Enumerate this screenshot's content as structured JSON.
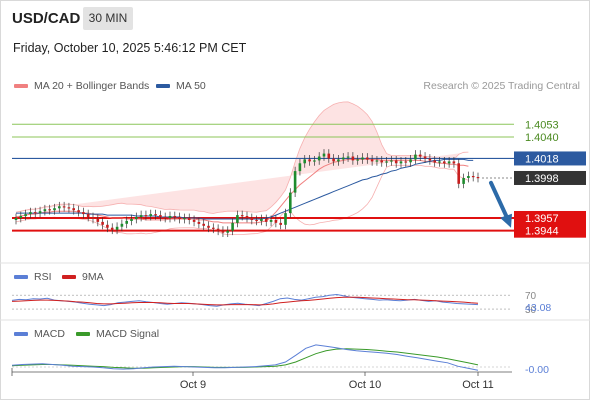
{
  "header": {
    "symbol": "USD/CAD",
    "timeframe": "30 MIN",
    "datetime": "Friday, October 10, 2025 5:46:12 PM CET",
    "copyright": "Research © 2025 Trading Central"
  },
  "legends": {
    "main": [
      {
        "label": "MA 20 + Bollinger Bands",
        "color": "#f08080"
      },
      {
        "label": "MA 50",
        "color": "#2c5aa0"
      }
    ],
    "rsi": [
      {
        "label": "RSI",
        "color": "#5b7fd6"
      },
      {
        "label": "9MA",
        "color": "#d02020"
      }
    ],
    "macd": [
      {
        "label": "MACD",
        "color": "#5b7fd6"
      },
      {
        "label": "MACD Signal",
        "color": "#3a9a2a"
      }
    ]
  },
  "colors": {
    "candle_up": "#1e8c2e",
    "candle_down": "#c81e1e",
    "band_fill": "#fde0e0",
    "resistance": "#8cc65a",
    "pivot": "#2c5aa0",
    "support": "#e01010",
    "current": "#333333",
    "arrow": "#2c6aa8"
  },
  "chart_data": [
    {
      "type": "candlestick",
      "ylim": [
        1.3916,
        1.4082
      ],
      "x_ticks": [
        "Oct 9",
        "Oct 10",
        "Oct 11"
      ],
      "levels": [
        {
          "label": "1.4053",
          "value": 1.4053,
          "kind": "resistance"
        },
        {
          "label": "1.4040",
          "value": 1.404,
          "kind": "resistance"
        },
        {
          "label": "1.4018",
          "value": 1.4018,
          "kind": "pivot"
        },
        {
          "label": "1.3998",
          "value": 1.3998,
          "kind": "current"
        },
        {
          "label": "1.3957",
          "value": 1.3957,
          "kind": "support"
        },
        {
          "label": "1.3944",
          "value": 1.3944,
          "kind": "support"
        }
      ],
      "close": [
        1.3957,
        1.3959,
        1.3961,
        1.3963,
        1.3962,
        1.3964,
        1.3966,
        1.3965,
        1.3967,
        1.3969,
        1.3968,
        1.3967,
        1.3965,
        1.3963,
        1.3961,
        1.3958,
        1.3956,
        1.3953,
        1.395,
        1.3947,
        1.3945,
        1.3948,
        1.3951,
        1.3954,
        1.3956,
        1.3958,
        1.396,
        1.3959,
        1.3961,
        1.396,
        1.3958,
        1.3957,
        1.3959,
        1.3958,
        1.3956,
        1.3957,
        1.3955,
        1.3953,
        1.3951,
        1.3949,
        1.3947,
        1.3946,
        1.3944,
        1.3942,
        1.3944,
        1.3952,
        1.396,
        1.3959,
        1.3957,
        1.3955,
        1.3954,
        1.3956,
        1.3953,
        1.3955,
        1.3952,
        1.395,
        1.3962,
        1.3983,
        1.4005,
        1.4013,
        1.4017,
        1.4015,
        1.4016,
        1.402,
        1.4023,
        1.4018,
        1.4015,
        1.4017,
        1.4019,
        1.402,
        1.4016,
        1.4017,
        1.4019,
        1.4017,
        1.4015,
        1.4016,
        1.4014,
        1.4015,
        1.4016,
        1.4013,
        1.4015,
        1.4014,
        1.4017,
        1.4022,
        1.402,
        1.4018,
        1.4016,
        1.4014,
        1.4015,
        1.4013,
        1.4015,
        1.4013,
        1.3992,
        1.3998,
        1.4,
        1.3999,
        1.3998
      ],
      "ma20": [
        1.3958,
        1.3959,
        1.396,
        1.3961,
        1.3961,
        1.3962,
        1.3963,
        1.3963,
        1.3964,
        1.3964,
        1.3964,
        1.3964,
        1.3964,
        1.3963,
        1.3962,
        1.3962,
        1.3961,
        1.396,
        1.3959,
        1.3958,
        1.3957,
        1.3957,
        1.3957,
        1.3956,
        1.3956,
        1.3956,
        1.3956,
        1.3955,
        1.3955,
        1.3955,
        1.3955,
        1.3955,
        1.3956,
        1.3956,
        1.3956,
        1.3956,
        1.3956,
        1.3956,
        1.3955,
        1.3955,
        1.3954,
        1.3953,
        1.3953,
        1.3952,
        1.3952,
        1.3952,
        1.3952,
        1.3952,
        1.3952,
        1.3952,
        1.3952,
        1.3953,
        1.3954,
        1.3958,
        1.3963,
        1.3969,
        1.3975,
        1.3981,
        1.3986,
        1.3991,
        1.3995,
        1.3999,
        1.4003,
        1.4007,
        1.401,
        1.4012,
        1.4014,
        1.4015,
        1.4016,
        1.4017,
        1.4017,
        1.4017,
        1.4017,
        1.4017,
        1.4017,
        1.4017,
        1.4016,
        1.4016,
        1.4016,
        1.4016,
        1.4016,
        1.4016,
        1.4016,
        1.4016,
        1.4016,
        1.4015,
        1.4015,
        1.4014,
        1.4013,
        1.4013,
        1.4012,
        1.4012,
        1.4011,
        1.4011,
        1.401
      ],
      "ma50": [
        1.3962,
        1.3962,
        1.3962,
        1.3962,
        1.3962,
        1.3962,
        1.3962,
        1.3962,
        1.3962,
        1.3962,
        1.3962,
        1.3962,
        1.3962,
        1.3962,
        1.3962,
        1.3961,
        1.3961,
        1.3961,
        1.3961,
        1.396,
        1.396,
        1.396,
        1.396,
        1.396,
        1.396,
        1.3959,
        1.3959,
        1.3959,
        1.3959,
        1.3959,
        1.3958,
        1.3958,
        1.3958,
        1.3958,
        1.3958,
        1.3957,
        1.3957,
        1.3957,
        1.3957,
        1.3956,
        1.3956,
        1.3956,
        1.3956,
        1.3956,
        1.3956,
        1.3956,
        1.3956,
        1.3956,
        1.3956,
        1.3956,
        1.3956,
        1.3956,
        1.3957,
        1.3958,
        1.396,
        1.3962,
        1.3964,
        1.3966,
        1.3968,
        1.397,
        1.3972,
        1.3974,
        1.3976,
        1.3978,
        1.398,
        1.3982,
        1.3984,
        1.3986,
        1.3988,
        1.399,
        1.3992,
        1.3994,
        1.3996,
        1.3997,
        1.3999,
        1.4,
        1.4002,
        1.4003,
        1.4005,
        1.4006,
        1.4008,
        1.4009,
        1.401,
        1.4012,
        1.4013,
        1.4014,
        1.4015,
        1.4016,
        1.4016,
        1.4017,
        1.4017,
        1.4017,
        1.4017,
        1.4017,
        1.4016,
        1.4016
      ]
    },
    {
      "type": "line",
      "name_label": "RSI",
      "ticks": [
        "70",
        "30"
      ],
      "current_label": "43.08",
      "rsi": [
        55,
        58,
        57,
        60,
        59,
        61,
        56,
        54,
        52,
        50,
        47,
        44,
        42,
        40,
        43,
        48,
        50,
        52,
        54,
        51,
        49,
        46,
        44,
        46,
        48,
        47,
        45,
        43,
        40,
        38,
        42,
        45,
        47,
        44,
        42,
        40,
        46,
        52,
        60,
        62,
        58,
        56,
        60,
        64,
        66,
        70,
        72,
        68,
        64,
        62,
        60,
        58,
        56,
        57,
        55,
        54,
        56,
        58,
        55,
        52,
        54,
        50,
        48,
        46,
        45,
        44,
        43
      ],
      "ma9": [
        52,
        53,
        54,
        55,
        56,
        56,
        55,
        54,
        53,
        51,
        50,
        48,
        46,
        45,
        45,
        46,
        47,
        48,
        49,
        49,
        49,
        48,
        47,
        46,
        46,
        46,
        45,
        44,
        43,
        42,
        42,
        43,
        43,
        43,
        43,
        42,
        43,
        45,
        48,
        50,
        52,
        54,
        55,
        57,
        59,
        61,
        63,
        64,
        64,
        64,
        63,
        62,
        61,
        60,
        59,
        58,
        57,
        57,
        56,
        55,
        54,
        53,
        52,
        51,
        50,
        48,
        47
      ]
    },
    {
      "type": "line",
      "name_label": "MACD",
      "current_label": "-0.00",
      "macd": [
        0.4,
        0.6,
        0.7,
        0.8,
        0.6,
        0.4,
        0.2,
        0.1,
        0.0,
        -0.2,
        -0.4,
        -0.5,
        -0.4,
        -0.2,
        0.0,
        0.1,
        0.2,
        0.1,
        0.0,
        -0.1,
        -0.2,
        -0.2,
        -0.1,
        0.0,
        0.1,
        0.3,
        0.5,
        1.2,
        2.8,
        4.5,
        5.3,
        5.0,
        4.6,
        4.2,
        3.9,
        3.7,
        3.5,
        3.3,
        3.0,
        2.6,
        2.2,
        1.8,
        1.4,
        1.0,
        0.2,
        -0.3,
        -0.8
      ],
      "signal": [
        0.3,
        0.4,
        0.5,
        0.6,
        0.6,
        0.5,
        0.4,
        0.3,
        0.2,
        0.1,
        -0.1,
        -0.2,
        -0.3,
        -0.3,
        -0.2,
        -0.1,
        0.0,
        0.1,
        0.1,
        0.0,
        -0.1,
        -0.1,
        -0.1,
        -0.1,
        0.0,
        0.1,
        0.2,
        0.5,
        1.2,
        2.2,
        3.2,
        3.9,
        4.3,
        4.4,
        4.3,
        4.2,
        4.0,
        3.8,
        3.6,
        3.3,
        3.0,
        2.7,
        2.4,
        2.0,
        1.5,
        1.0,
        0.5
      ]
    }
  ]
}
